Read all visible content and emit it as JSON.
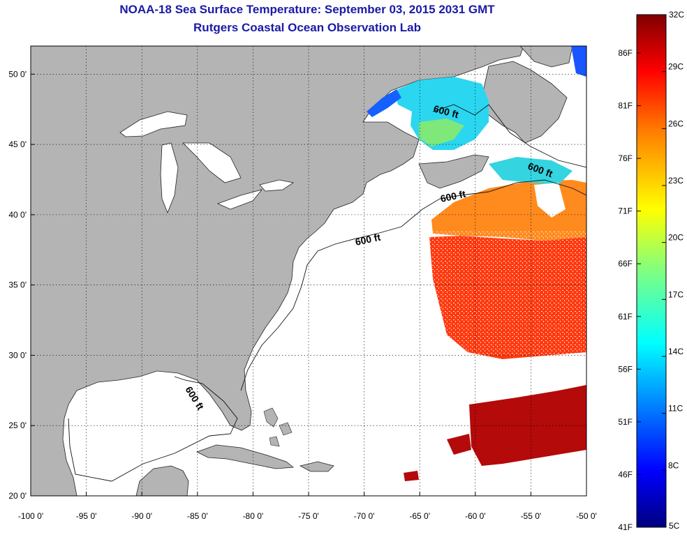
{
  "header": {
    "title": "NOAA-18 Sea Surface Temperature:  September 03, 2015 2031 GMT",
    "subtitle": "Rutgers Coastal Ocean Observation Lab"
  },
  "axes": {
    "x_ticks": [
      "-100 0'",
      "-95 0'",
      "-90 0'",
      "-85 0'",
      "-80 0'",
      "-75 0'",
      "-70 0'",
      "-65 0'",
      "-60 0'",
      "-55 0'",
      "-50 0'"
    ],
    "y_ticks": [
      "50 0'",
      "45 0'",
      "40 0'",
      "35 0'",
      "30 0'",
      "25 0'",
      "20 0'"
    ],
    "x_range": [
      -100,
      -50
    ],
    "y_range": [
      20,
      52
    ]
  },
  "contour": {
    "depth_label": "600 ft",
    "label_count": 5
  },
  "colorbar": {
    "celsius_labels": [
      "32C",
      "29C",
      "26C",
      "23C",
      "20C",
      "17C",
      "14C",
      "11C",
      "8C",
      "5C"
    ],
    "fahrenheit_labels": [
      "86F",
      "81F",
      "76F",
      "71F",
      "66F",
      "61F",
      "56F",
      "51F",
      "46F",
      "41F"
    ],
    "range_c": [
      5,
      32
    ],
    "colors": [
      "#00007f",
      "#0000ff",
      "#0080ff",
      "#00ffff",
      "#80ff80",
      "#ffff00",
      "#ff8000",
      "#ff0000",
      "#7f0000"
    ]
  },
  "colors": {
    "land": "#b4b4b4",
    "ocean": "#ffffff",
    "title": "#1a1aa6"
  }
}
